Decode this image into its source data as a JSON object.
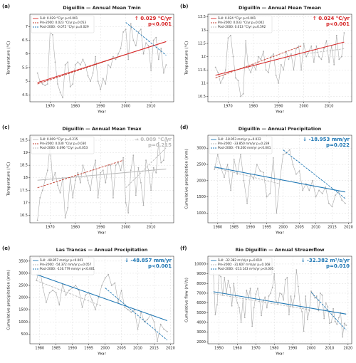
{
  "chart_data": [
    {
      "type": "line",
      "panel_label": "(a)",
      "title": "Diguillín — Annual Mean Tmin",
      "xlabel": "Year",
      "ylabel": "Temperature (°C)",
      "xlim": [
        1962,
        2019
      ],
      "xticks": [
        1970,
        1980,
        1990,
        2000,
        2010
      ],
      "ylim": [
        4.25,
        7.45
      ],
      "yticks": [
        4.5,
        5.0,
        5.5,
        6.0,
        6.5,
        7.0
      ],
      "grid": true,
      "color": "#aaaaaa",
      "x": [
        1965,
        1966,
        1967,
        1968,
        1969,
        1970,
        1971,
        1972,
        1973,
        1974,
        1975,
        1976,
        1977,
        1978,
        1979,
        1980,
        1981,
        1982,
        1983,
        1984,
        1985,
        1986,
        1987,
        1988,
        1989,
        1990,
        1991,
        1992,
        1993,
        1994,
        1995,
        1996,
        1997,
        1998,
        1999,
        2000,
        2001,
        2002,
        2003,
        2004,
        2005,
        2006,
        2007,
        2008,
        2009,
        2010,
        2011,
        2012,
        2013,
        2014,
        2015,
        2016
      ],
      "values": [
        5.3,
        5.0,
        4.9,
        4.85,
        4.9,
        6.8,
        6.7,
        5.7,
        4.9,
        4.6,
        4.4,
        5.6,
        5.7,
        4.8,
        4.9,
        5.6,
        5.7,
        5.6,
        5.8,
        5.6,
        5.2,
        5.0,
        5.3,
        5.9,
        5.0,
        4.7,
        5.1,
        4.9,
        5.6,
        5.5,
        5.9,
        5.8,
        6.0,
        6.2,
        6.8,
        6.9,
        5.8,
        7.1,
        6.5,
        6.3,
        6.8,
        6.9,
        6.0,
        6.4,
        6.3,
        5.4,
        6.5,
        6.6,
        5.8,
        6.2,
        5.3,
        5.6
      ],
      "trends": [
        {
          "name": "Full: 0.029 °C/yr  p<0.001",
          "color": "#d62728",
          "dash": false,
          "x": [
            1965,
            2016
          ],
          "values": [
            4.95,
            6.45
          ]
        },
        {
          "name": "Pre-2000: 0.023 °C/yr  p=0.053",
          "color": "#c0392b",
          "dash": true,
          "x": [
            1965,
            1999
          ],
          "values": [
            4.9,
            5.95
          ]
        },
        {
          "name": "Post-2000: -0.075 °C/yr  p=0.029",
          "color": "#1f77b4",
          "dash": true,
          "x": [
            2000,
            2016
          ],
          "values": [
            7.15,
            5.95
          ]
        }
      ],
      "annotation": [
        "↑ 0.029 °C/yr",
        "p<0.001"
      ],
      "annotation_color": "#d62728"
    },
    {
      "type": "line",
      "panel_label": "(b)",
      "title": "Diguillín — Annual Mean Tmean",
      "xlabel": "Year",
      "ylabel": "Temperature (°C)",
      "xlim": [
        1962,
        2019
      ],
      "xticks": [
        1970,
        1980,
        1990,
        2000,
        2010
      ],
      "ylim": [
        10.3,
        13.6
      ],
      "yticks": [
        10.5,
        11.0,
        11.5,
        12.0,
        12.5,
        13.0,
        13.5
      ],
      "grid": true,
      "color": "#aaaaaa",
      "x": [
        1965,
        1966,
        1967,
        1968,
        1969,
        1970,
        1971,
        1972,
        1973,
        1974,
        1975,
        1976,
        1977,
        1978,
        1979,
        1980,
        1981,
        1982,
        1983,
        1984,
        1985,
        1986,
        1987,
        1988,
        1989,
        1990,
        1991,
        1992,
        1993,
        1994,
        1995,
        1996,
        1997,
        1998,
        1999,
        2000,
        2001,
        2002,
        2003,
        2004,
        2005,
        2006,
        2007,
        2008,
        2009,
        2010,
        2011,
        2012,
        2013,
        2014,
        2015,
        2016
      ],
      "values": [
        11.6,
        11.4,
        11.0,
        11.2,
        11.5,
        12.7,
        12.8,
        12.0,
        11.2,
        11.1,
        10.5,
        10.6,
        12.6,
        11.6,
        11.4,
        11.7,
        11.5,
        12.0,
        11.9,
        12.2,
        11.5,
        11.4,
        12.0,
        12.1,
        11.3,
        11.0,
        11.7,
        11.5,
        12.2,
        11.9,
        12.1,
        11.5,
        12.3,
        12.4,
        11.5,
        12.5,
        12.0,
        12.2,
        12.4,
        11.8,
        12.4,
        12.0,
        11.9,
        12.3,
        12.6,
        11.8,
        12.4,
        11.7,
        12.8,
        11.9,
        12.0,
        12.9
      ],
      "trends": [
        {
          "name": "Full: 0.024 °C/yr  p<0.001",
          "color": "#d62728",
          "dash": false,
          "x": [
            1965,
            2016
          ],
          "values": [
            11.3,
            12.55
          ]
        },
        {
          "name": "Pre-2000: 0.033 °C/yr  p=0.002",
          "color": "#c0392b",
          "dash": true,
          "x": [
            1965,
            1999
          ],
          "values": [
            11.2,
            12.4
          ]
        },
        {
          "name": "Post-2000: 0.013 °C/yr  p=0.592",
          "color": "#bbbbbb",
          "dash": true,
          "x": [
            2000,
            2016
          ],
          "values": [
            12.1,
            12.3
          ]
        }
      ],
      "annotation": [
        "↑ 0.024 °C/yr",
        "p<0.001"
      ],
      "annotation_color": "#d62728"
    },
    {
      "type": "line",
      "panel_label": "(c)",
      "title": "Diguillín — Annual Mean Tmax",
      "xlabel": "Year",
      "ylabel": "Temperature (°C)",
      "xlim": [
        1962,
        2019
      ],
      "xticks": [
        1970,
        1980,
        1990,
        2000,
        2010
      ],
      "ylim": [
        16.2,
        19.7
      ],
      "yticks": [
        16.5,
        17.0,
        17.5,
        18.0,
        18.5,
        19.0,
        19.5
      ],
      "grid": true,
      "color": "#aaaaaa",
      "x": [
        1965,
        1966,
        1967,
        1968,
        1969,
        1970,
        1971,
        1972,
        1973,
        1974,
        1975,
        1976,
        1977,
        1978,
        1979,
        1980,
        1981,
        1982,
        1983,
        1984,
        1985,
        1986,
        1987,
        1988,
        1989,
        1990,
        1991,
        1992,
        1993,
        1994,
        1995,
        1996,
        1997,
        1998,
        1999,
        2000,
        2001,
        2002,
        2003,
        2004,
        2005,
        2006,
        2007,
        2008,
        2009,
        2010,
        2011,
        2012,
        2013,
        2014,
        2015,
        2016
      ],
      "values": [
        16.3,
        17.2,
        17.5,
        17.9,
        18.3,
        19.3,
        17.9,
        18.2,
        17.7,
        17.4,
        18.0,
        16.4,
        16.8,
        18.0,
        17.2,
        17.9,
        18.2,
        17.8,
        18.5,
        18.2,
        17.9,
        17.5,
        18.3,
        18.7,
        17.2,
        18.2,
        18.3,
        17.8,
        18.5,
        18.5,
        17.2,
        18.5,
        18.6,
        18.3,
        18.8,
        17.0,
        16.6,
        18.3,
        18.9,
        17.3,
        18.4,
        17.8,
        16.9,
        18.7,
        18.3,
        17.5,
        18.4,
        18.2,
        19.4,
        18.6,
        18.7,
        19.6
      ],
      "trends": [
        {
          "name": "Full: 0.009 °C/yr  p=0.215",
          "color": "#bbbbbb",
          "dash": false,
          "x": [
            1965,
            2016
          ],
          "values": [
            17.9,
            18.35
          ]
        },
        {
          "name": "Pre-2000: 0.030 °C/yr  p=0.030",
          "color": "#c0392b",
          "dash": true,
          "x": [
            1965,
            1999
          ],
          "values": [
            17.6,
            18.7
          ]
        },
        {
          "name": "Post-2000: 0.096 °C/yr  p=0.053",
          "color": "#bbbbbb",
          "dash": true,
          "x": [
            2000,
            2016
          ],
          "values": [
            17.6,
            19.2
          ]
        }
      ],
      "annotation": [
        "→ 0.009 °C/yr",
        "p=0.215"
      ],
      "annotation_color": "#bbbbbb"
    },
    {
      "type": "line",
      "panel_label": "(d)",
      "title": "Diguillín — Annual Precipitation",
      "xlabel": "Year",
      "ylabel": "Cumulative precipitation (mm)",
      "xlim": [
        1977,
        2021
      ],
      "xticks": [
        1980,
        1985,
        1990,
        1995,
        2000,
        2005,
        2010,
        2015,
        2020
      ],
      "ylim": [
        700,
        3400
      ],
      "yticks": [
        1000,
        1500,
        2000,
        2500,
        3000
      ],
      "grid": true,
      "color": "#aaaaaa",
      "x": [
        1979,
        1980,
        1981,
        1982,
        1983,
        1984,
        1985,
        1986,
        1987,
        1988,
        1989,
        1990,
        1991,
        1992,
        1993,
        1994,
        1995,
        1996,
        1997,
        1998,
        1999,
        2000,
        2001,
        2002,
        2003,
        2004,
        2005,
        2006,
        2007,
        2008,
        2009,
        2010,
        2011,
        2012,
        2013,
        2014,
        2015,
        2016,
        2017,
        2018,
        2019
      ],
      "values": [
        2350,
        2800,
        2400,
        2100,
        2500,
        1700,
        2650,
        2200,
        2800,
        2000,
        1300,
        2200,
        2050,
        2500,
        2300,
        2250,
        1500,
        1600,
        2700,
        1000,
        2000,
        2800,
        2850,
        2950,
        2500,
        2200,
        2300,
        1700,
        1900,
        1700,
        2000,
        1500,
        1700,
        1600,
        1800,
        1300,
        1200,
        1550,
        1650,
        1400,
        1300
      ],
      "trends": [
        {
          "name": "Full: -18.953 mm/yr  p=0.022",
          "color": "#1f77b4",
          "dash": false,
          "x": [
            1979,
            2019
          ],
          "values": [
            2420,
            1650
          ]
        },
        {
          "name": "Pre-2000: -33.850 mm/yr  p=0.239",
          "color": "#bbbbbb",
          "dash": true,
          "x": [
            1979,
            1999
          ],
          "values": [
            2400,
            1900
          ]
        },
        {
          "name": "Post-2000: -78.200 mm/yr  p<0.001",
          "color": "#1f77b4",
          "dash": true,
          "x": [
            2000,
            2019
          ],
          "values": [
            2950,
            1450
          ]
        }
      ],
      "annotation": [
        "↓ -18.953 mm/yr",
        "p=0.022"
      ],
      "annotation_color": "#1f77b4"
    },
    {
      "type": "line",
      "panel_label": "(e)",
      "title": "Las Trancas — Annual Precipitation",
      "xlabel": "Year",
      "ylabel": "Cumulative precipitation (mm)",
      "xlim": [
        1977,
        2021
      ],
      "xticks": [
        1980,
        1985,
        1990,
        1995,
        2000,
        2005,
        2010,
        2015,
        2020
      ],
      "ylim": [
        100,
        3700
      ],
      "yticks": [
        500,
        1000,
        1500,
        2000,
        2500,
        3000,
        3500
      ],
      "grid": true,
      "color": "#aaaaaa",
      "x": [
        1979,
        1980,
        1981,
        1982,
        1983,
        1984,
        1985,
        1986,
        1987,
        1988,
        1989,
        1990,
        1991,
        1992,
        1993,
        1994,
        1995,
        1996,
        1997,
        1998,
        1999,
        2000,
        2001,
        2002,
        2003,
        2004,
        2005,
        2006,
        2007,
        2008,
        2009,
        2010,
        2011,
        2012,
        2013,
        2014,
        2015,
        2016,
        2017,
        2018,
        2019
      ],
      "values": [
        2700,
        3200,
        2400,
        1800,
        2200,
        2300,
        2200,
        1700,
        2550,
        2100,
        2300,
        2400,
        2500,
        2300,
        1600,
        2100,
        2200,
        1900,
        1500,
        2000,
        2500,
        2800,
        2950,
        2500,
        2600,
        1800,
        2300,
        1600,
        1500,
        1400,
        1500,
        700,
        1400,
        1000,
        1100,
        1300,
        1000,
        200,
        900,
        700,
        600
      ],
      "trends": [
        {
          "name": "Full: -48.857 mm/yr  p<0.001",
          "color": "#1f77b4",
          "dash": false,
          "x": [
            1979,
            2019
          ],
          "values": [
            2950,
            1050
          ]
        },
        {
          "name": "Pre-2000: -54.372 mm/yr  p=0.057",
          "color": "#bbbbbb",
          "dash": true,
          "x": [
            1979,
            1999
          ],
          "values": [
            2700,
            1650
          ]
        },
        {
          "name": "Post-2000: -116.779 mm/yr  p<0.001",
          "color": "#1f77b4",
          "dash": true,
          "x": [
            2000,
            2019
          ],
          "values": [
            2400,
            250
          ]
        }
      ],
      "annotation": [
        "↓ -48.857 mm/yr",
        "p<0.001"
      ],
      "annotation_color": "#1f77b4"
    },
    {
      "type": "line",
      "panel_label": "(f)",
      "title": "Rio Diguillin — Annual Streamflow",
      "xlabel": "Year",
      "ylabel": "Cumulative flow (m³/s)",
      "xlim": [
        1944,
        2022
      ],
      "xticks": [
        1950,
        1960,
        1970,
        1980,
        1990,
        2000,
        2010,
        2020
      ],
      "ylim": [
        1800,
        10800
      ],
      "yticks": [
        2000,
        3000,
        4000,
        5000,
        6000,
        7000,
        8000,
        9000,
        10000
      ],
      "grid": true,
      "color": "#aaaaaa",
      "x": [
        1947,
        1948,
        1949,
        1950,
        1951,
        1952,
        1953,
        1954,
        1955,
        1956,
        1957,
        1958,
        1959,
        1960,
        1961,
        1962,
        1963,
        1964,
        1965,
        1966,
        1967,
        1968,
        1969,
        1970,
        1971,
        1972,
        1973,
        1974,
        1975,
        1976,
        1977,
        1978,
        1979,
        1980,
        1981,
        1982,
        1983,
        1984,
        1985,
        1986,
        1987,
        1988,
        1989,
        1990,
        1991,
        1992,
        1993,
        1994,
        1995,
        1996,
        1997,
        1998,
        1999,
        2000,
        2001,
        2002,
        2003,
        2004,
        2005,
        2006,
        2007,
        2008,
        2009,
        2010,
        2011,
        2012,
        2013,
        2014,
        2015,
        2016,
        2017,
        2018,
        2019
      ],
      "values": [
        9000,
        4800,
        5800,
        8900,
        8700,
        6800,
        8600,
        7000,
        8300,
        7600,
        5700,
        8000,
        6700,
        6000,
        5500,
        4000,
        6300,
        4500,
        7300,
        6500,
        7500,
        3600,
        5500,
        6900,
        7500,
        6400,
        4700,
        6200,
        6600,
        5500,
        6700,
        7000,
        7600,
        9000,
        6200,
        5900,
        7000,
        6900,
        6300,
        8400,
        8600,
        4800,
        6700,
        5600,
        6700,
        9400,
        7700,
        5800,
        5100,
        3100,
        6700,
        4300,
        5200,
        7200,
        6900,
        6500,
        6700,
        5200,
        7000,
        6800,
        4400,
        6000,
        5600,
        3900,
        4000,
        5400,
        4100,
        3800,
        4500,
        5000,
        2500,
        3900,
        3700
      ],
      "trends": [
        {
          "name": "Full: -32.382 m³/s/yr  p=0.010",
          "color": "#1f77b4",
          "dash": false,
          "x": [
            1947,
            2019
          ],
          "values": [
            7150,
            4850
          ]
        },
        {
          "name": "Pre-2000: -31.607 m³/s/yr  p=0.168",
          "color": "#bbbbbb",
          "dash": true,
          "x": [
            1947,
            1999
          ],
          "values": [
            6950,
            5300
          ]
        },
        {
          "name": "Post-2000: -213.143 m³/s/yr  p<0.001",
          "color": "#1f77b4",
          "dash": true,
          "x": [
            2000,
            2019
          ],
          "values": [
            7100,
            3200
          ]
        }
      ],
      "annotation": [
        "↓ -32.382 m³/s/yr",
        "p=0.010"
      ],
      "annotation_color": "#1f77b4"
    }
  ]
}
